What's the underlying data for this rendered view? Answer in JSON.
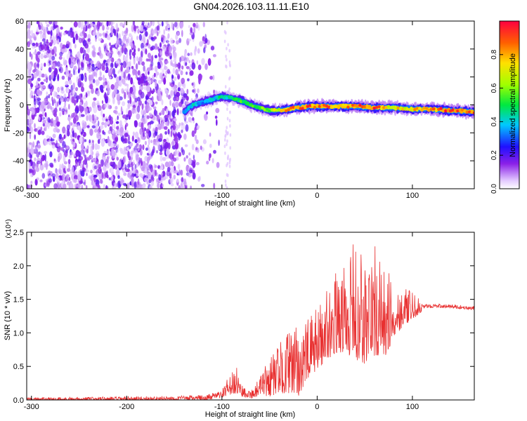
{
  "page_title": "GN04.2026.103.11.11.E10",
  "chart_data": [
    {
      "type": "heatmap",
      "title": "GN04.2026.103.11.11.E10",
      "xlabel": "Height of straight line (km)",
      "ylabel": "Frequency (Hz)",
      "xlim": [
        -305,
        165
      ],
      "ylim": [
        -60,
        60
      ],
      "x_ticks": [
        -300,
        -200,
        -100,
        0,
        100
      ],
      "x_tick_labels": [
        "-300",
        "-200",
        "-100",
        "0",
        "100"
      ],
      "y_ticks": [
        -60,
        -40,
        -20,
        0,
        20,
        40,
        60
      ],
      "y_tick_labels": [
        "-60",
        "-40",
        "-20",
        "0",
        "20",
        "40",
        "60"
      ],
      "colorbar": {
        "label": "Normalized spectral amplitude",
        "range": [
          0,
          1
        ],
        "ticks": [
          0.0,
          0.2,
          0.4,
          0.6,
          0.8
        ],
        "tick_labels": [
          "0.0",
          "0.2",
          "0.4",
          "0.6",
          "0.8"
        ]
      },
      "ridge": {
        "x": [
          -140,
          -130,
          -120,
          -110,
          -100,
          -90,
          -80,
          -70,
          -60,
          -50,
          -40,
          -30,
          -20,
          -10,
          0,
          20,
          40,
          60,
          80,
          100,
          120,
          140,
          165
        ],
        "y": [
          -5,
          0,
          2,
          4,
          6,
          5,
          3,
          0,
          -2,
          -4,
          -4,
          -3,
          -2,
          -1,
          -1,
          -1,
          -1,
          -2,
          -2,
          -3,
          -3,
          -4,
          -5
        ],
        "amplitude": [
          0.35,
          0.4,
          0.35,
          0.4,
          0.45,
          0.45,
          0.5,
          0.5,
          0.55,
          0.6,
          0.7,
          0.8,
          0.85,
          0.85,
          0.85,
          0.85,
          0.85,
          0.85,
          0.7,
          0.75,
          0.8,
          0.9,
          0.85
        ]
      },
      "noise_region_x": [
        -305,
        -120
      ]
    },
    {
      "type": "line",
      "xlabel": "Height of straight line (km)",
      "ylabel": "SNR (10 * v/v)",
      "y_scale_label": "(x10⁴)",
      "xlim": [
        -305,
        165
      ],
      "ylim": [
        0,
        2.5
      ],
      "x_ticks": [
        -300,
        -200,
        -100,
        0,
        100
      ],
      "x_tick_labels": [
        "-300",
        "-200",
        "-100",
        "0",
        "100"
      ],
      "y_ticks": [
        0,
        0.5,
        1.0,
        1.5,
        2.0,
        2.5
      ],
      "y_tick_labels": [
        "0.0",
        "0.5",
        "1.0",
        "1.5",
        "2.0",
        "2.5"
      ],
      "series": [
        {
          "name": "SNR",
          "color": "#e83030",
          "envelope_x": [
            -305,
            -200,
            -150,
            -130,
            -115,
            -100,
            -95,
            -85,
            -80,
            -70,
            -60,
            -50,
            -40,
            -30,
            -20,
            -10,
            0,
            10,
            20,
            30,
            40,
            50,
            60,
            70,
            80,
            90,
            100,
            110,
            120,
            140,
            165
          ],
          "envelope_upper": [
            0.04,
            0.05,
            0.06,
            0.07,
            0.08,
            0.15,
            0.3,
            0.5,
            0.3,
            0.15,
            0.35,
            0.65,
            0.85,
            1.05,
            1.1,
            1.2,
            1.4,
            1.7,
            1.9,
            2.1,
            2.4,
            2.2,
            2.35,
            2.0,
            1.8,
            1.7,
            1.6,
            1.5,
            1.45,
            1.43,
            1.4
          ],
          "envelope_lower": [
            0.0,
            0.0,
            0.0,
            0.0,
            0.0,
            0.03,
            0.05,
            0.1,
            0.05,
            0.02,
            0.05,
            0.05,
            0.1,
            0.1,
            0.05,
            0.3,
            0.45,
            0.6,
            0.7,
            0.7,
            0.6,
            0.5,
            0.65,
            0.6,
            0.9,
            1.1,
            1.2,
            1.3,
            1.35,
            1.36,
            1.34
          ]
        }
      ]
    }
  ]
}
